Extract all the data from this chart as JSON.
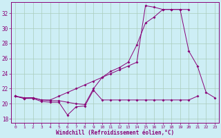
{
  "xlabel": "Windchill (Refroidissement éolien,°C)",
  "bg_color": "#cdeef5",
  "line_color": "#880077",
  "grid_color": "#aaccbb",
  "xlim": [
    -0.5,
    23.5
  ],
  "ylim": [
    17.5,
    33.5
  ],
  "xticks": [
    0,
    1,
    2,
    3,
    4,
    5,
    6,
    7,
    8,
    9,
    10,
    11,
    12,
    13,
    14,
    15,
    16,
    17,
    18,
    19,
    20,
    21,
    22,
    23
  ],
  "yticks": [
    18,
    20,
    22,
    24,
    26,
    28,
    30,
    32
  ],
  "series1_y": [
    21.0,
    20.7,
    20.8,
    20.5,
    20.4,
    20.4,
    20.2,
    20.0,
    19.9,
    22.0,
    23.5,
    24.3,
    24.8,
    25.5,
    27.8,
    30.7,
    31.5,
    32.5,
    32.5,
    32.5,
    27.0,
    25.0,
    21.5,
    20.8
  ],
  "series2_y": [
    21.0,
    20.8,
    20.8,
    20.5,
    20.5,
    21.0,
    21.5,
    22.0,
    22.5,
    23.0,
    23.5,
    24.0,
    24.5,
    25.0,
    25.5,
    33.0,
    32.8,
    32.5,
    32.5,
    32.5,
    32.5,
    null,
    null,
    null
  ],
  "series3_y": [
    21.0,
    20.7,
    20.7,
    20.3,
    20.2,
    20.2,
    18.5,
    19.6,
    19.7,
    21.8,
    20.5,
    20.5,
    20.5,
    20.5,
    20.5,
    20.5,
    20.5,
    20.5,
    20.5,
    20.5,
    20.5,
    21.0,
    null,
    null
  ]
}
